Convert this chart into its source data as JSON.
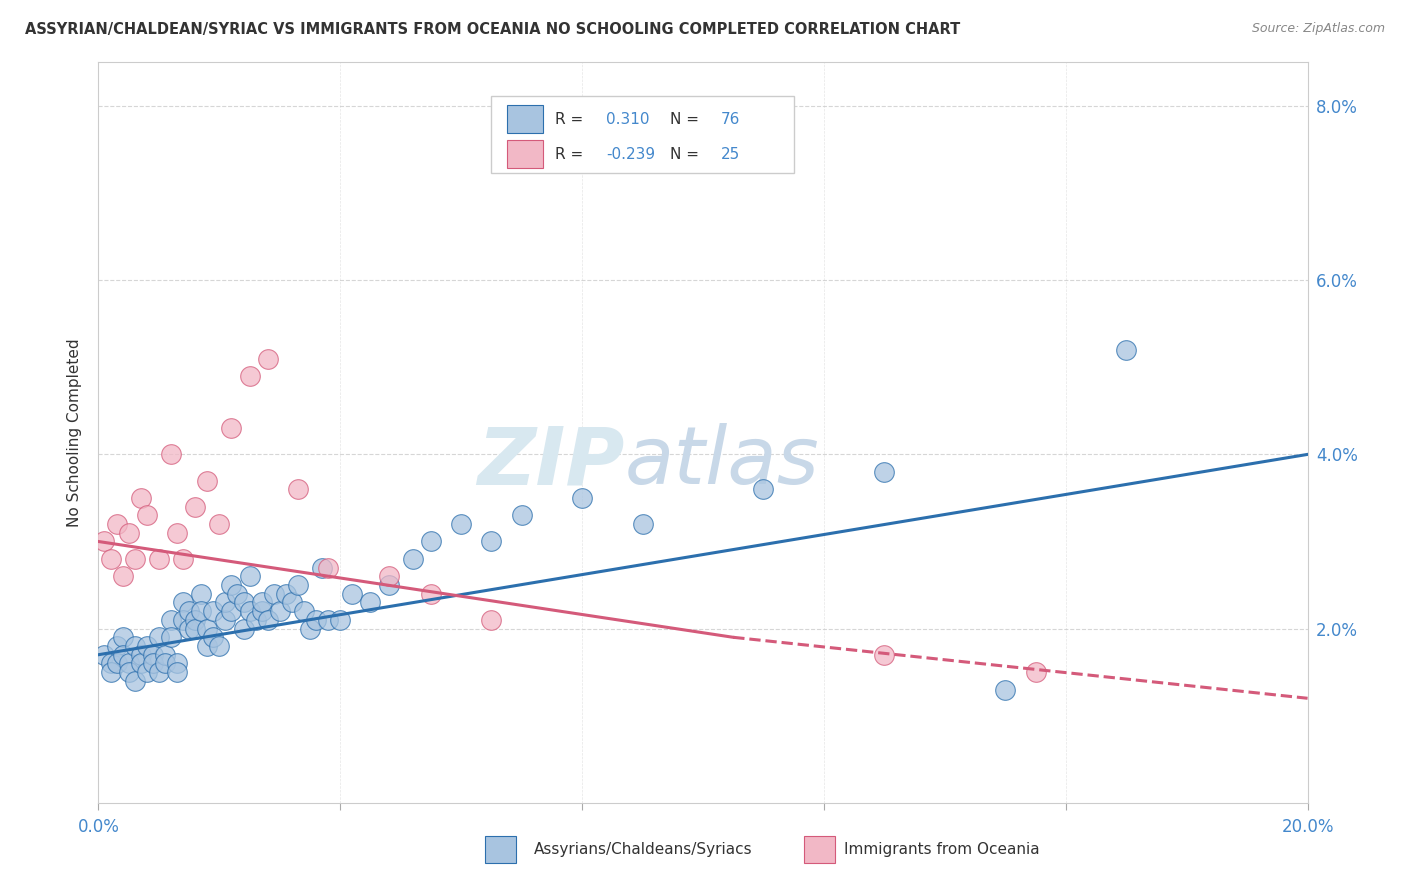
{
  "title": "ASSYRIAN/CHALDEAN/SYRIAC VS IMMIGRANTS FROM OCEANIA NO SCHOOLING COMPLETED CORRELATION CHART",
  "source": "Source: ZipAtlas.com",
  "ylabel": "No Schooling Completed",
  "xlim": [
    0.0,
    0.2
  ],
  "ylim": [
    0.0,
    0.085
  ],
  "ytick_vals": [
    0.02,
    0.04,
    0.06,
    0.08
  ],
  "ytick_labels": [
    "2.0%",
    "4.0%",
    "6.0%",
    "8.0%"
  ],
  "xtick_vals": [
    0.0,
    0.04,
    0.08,
    0.12,
    0.16,
    0.2
  ],
  "xtick_labels": [
    "0.0%",
    "",
    "",
    "",
    "",
    "20.0%"
  ],
  "series1_color": "#a8c4e0",
  "series1_line_color": "#2c6fad",
  "series2_color": "#f2b8c6",
  "series2_line_color": "#d45a7a",
  "blue_regression": {
    "x_start": 0.0,
    "y_start": 0.017,
    "x_end": 0.2,
    "y_end": 0.04
  },
  "pink_regression_solid": {
    "x_start": 0.0,
    "y_start": 0.03,
    "x_end": 0.105,
    "y_end": 0.019
  },
  "pink_regression_dashed": {
    "x_start": 0.105,
    "y_start": 0.019,
    "x_end": 0.2,
    "y_end": 0.012
  },
  "background_color": "#ffffff",
  "grid_color": "#cccccc",
  "title_color": "#333333",
  "source_color": "#888888",
  "axis_color": "#4488cc",
  "legend_r1": "0.310",
  "legend_n1": "76",
  "legend_r2": "-0.239",
  "legend_n2": "25",
  "blue_dots": [
    [
      0.001,
      0.017
    ],
    [
      0.002,
      0.016
    ],
    [
      0.002,
      0.015
    ],
    [
      0.003,
      0.018
    ],
    [
      0.003,
      0.016
    ],
    [
      0.004,
      0.019
    ],
    [
      0.004,
      0.017
    ],
    [
      0.005,
      0.016
    ],
    [
      0.005,
      0.015
    ],
    [
      0.006,
      0.018
    ],
    [
      0.006,
      0.014
    ],
    [
      0.007,
      0.017
    ],
    [
      0.007,
      0.016
    ],
    [
      0.008,
      0.015
    ],
    [
      0.008,
      0.018
    ],
    [
      0.009,
      0.017
    ],
    [
      0.009,
      0.016
    ],
    [
      0.01,
      0.019
    ],
    [
      0.01,
      0.015
    ],
    [
      0.011,
      0.017
    ],
    [
      0.011,
      0.016
    ],
    [
      0.012,
      0.021
    ],
    [
      0.012,
      0.019
    ],
    [
      0.013,
      0.016
    ],
    [
      0.013,
      0.015
    ],
    [
      0.014,
      0.023
    ],
    [
      0.014,
      0.021
    ],
    [
      0.015,
      0.022
    ],
    [
      0.015,
      0.02
    ],
    [
      0.016,
      0.021
    ],
    [
      0.016,
      0.02
    ],
    [
      0.017,
      0.024
    ],
    [
      0.017,
      0.022
    ],
    [
      0.018,
      0.02
    ],
    [
      0.018,
      0.018
    ],
    [
      0.019,
      0.019
    ],
    [
      0.019,
      0.022
    ],
    [
      0.02,
      0.018
    ],
    [
      0.021,
      0.021
    ],
    [
      0.021,
      0.023
    ],
    [
      0.022,
      0.025
    ],
    [
      0.022,
      0.022
    ],
    [
      0.023,
      0.024
    ],
    [
      0.024,
      0.02
    ],
    [
      0.024,
      0.023
    ],
    [
      0.025,
      0.026
    ],
    [
      0.025,
      0.022
    ],
    [
      0.026,
      0.021
    ],
    [
      0.027,
      0.022
    ],
    [
      0.027,
      0.023
    ],
    [
      0.028,
      0.021
    ],
    [
      0.029,
      0.024
    ],
    [
      0.03,
      0.022
    ],
    [
      0.031,
      0.024
    ],
    [
      0.032,
      0.023
    ],
    [
      0.033,
      0.025
    ],
    [
      0.034,
      0.022
    ],
    [
      0.035,
      0.02
    ],
    [
      0.036,
      0.021
    ],
    [
      0.037,
      0.027
    ],
    [
      0.038,
      0.021
    ],
    [
      0.04,
      0.021
    ],
    [
      0.042,
      0.024
    ],
    [
      0.045,
      0.023
    ],
    [
      0.048,
      0.025
    ],
    [
      0.052,
      0.028
    ],
    [
      0.055,
      0.03
    ],
    [
      0.06,
      0.032
    ],
    [
      0.065,
      0.03
    ],
    [
      0.07,
      0.033
    ],
    [
      0.08,
      0.035
    ],
    [
      0.09,
      0.032
    ],
    [
      0.11,
      0.036
    ],
    [
      0.13,
      0.038
    ],
    [
      0.15,
      0.013
    ],
    [
      0.17,
      0.052
    ]
  ],
  "pink_dots": [
    [
      0.001,
      0.03
    ],
    [
      0.002,
      0.028
    ],
    [
      0.003,
      0.032
    ],
    [
      0.004,
      0.026
    ],
    [
      0.005,
      0.031
    ],
    [
      0.006,
      0.028
    ],
    [
      0.007,
      0.035
    ],
    [
      0.008,
      0.033
    ],
    [
      0.01,
      0.028
    ],
    [
      0.012,
      0.04
    ],
    [
      0.013,
      0.031
    ],
    [
      0.014,
      0.028
    ],
    [
      0.016,
      0.034
    ],
    [
      0.018,
      0.037
    ],
    [
      0.02,
      0.032
    ],
    [
      0.022,
      0.043
    ],
    [
      0.025,
      0.049
    ],
    [
      0.028,
      0.051
    ],
    [
      0.033,
      0.036
    ],
    [
      0.038,
      0.027
    ],
    [
      0.048,
      0.026
    ],
    [
      0.055,
      0.024
    ],
    [
      0.065,
      0.021
    ],
    [
      0.13,
      0.017
    ],
    [
      0.155,
      0.015
    ]
  ]
}
